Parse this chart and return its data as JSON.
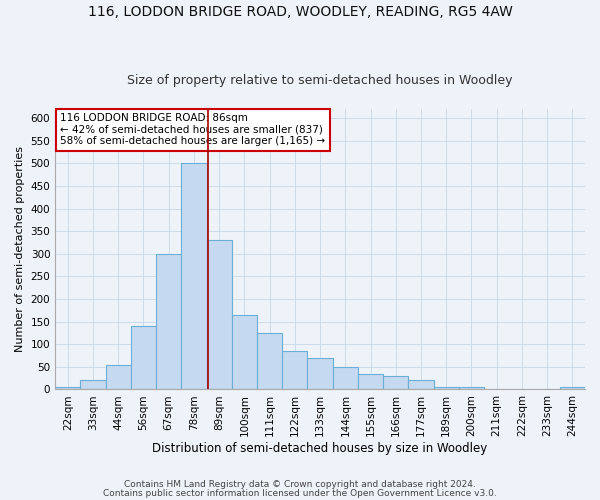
{
  "title": "116, LODDON BRIDGE ROAD, WOODLEY, READING, RG5 4AW",
  "subtitle": "Size of property relative to semi-detached houses in Woodley",
  "xlabel": "Distribution of semi-detached houses by size in Woodley",
  "ylabel": "Number of semi-detached properties",
  "footer1": "Contains HM Land Registry data © Crown copyright and database right 2024.",
  "footer2": "Contains public sector information licensed under the Open Government Licence v3.0.",
  "annotation_line1": "116 LODDON BRIDGE ROAD: 86sqm",
  "annotation_line2": "← 42% of semi-detached houses are smaller (837)",
  "annotation_line3": "58% of semi-detached houses are larger (1,165) →",
  "bar_labels": [
    "22sqm",
    "33sqm",
    "44sqm",
    "56sqm",
    "67sqm",
    "78sqm",
    "89sqm",
    "100sqm",
    "111sqm",
    "122sqm",
    "133sqm",
    "144sqm",
    "155sqm",
    "166sqm",
    "177sqm",
    "189sqm",
    "200sqm",
    "211sqm",
    "222sqm",
    "233sqm",
    "244sqm"
  ],
  "bar_values": [
    5,
    20,
    55,
    140,
    300,
    500,
    330,
    165,
    125,
    85,
    70,
    50,
    35,
    30,
    20,
    5,
    5,
    0,
    0,
    0,
    5
  ],
  "bar_color": "#c5d9f0",
  "bar_edge_color": "#6baed6",
  "vline_color": "#aa0000",
  "vline_x": 5.55,
  "ylim": [
    0,
    620
  ],
  "yticks": [
    0,
    50,
    100,
    150,
    200,
    250,
    300,
    350,
    400,
    450,
    500,
    550,
    600
  ],
  "background_color": "#eef2f9",
  "plot_background": "#eef2f9",
  "annotation_box_color": "#ffffff",
  "annotation_box_edge": "#cc0000",
  "title_fontsize": 10,
  "subtitle_fontsize": 9,
  "xlabel_fontsize": 8.5,
  "ylabel_fontsize": 8,
  "tick_fontsize": 7.5,
  "annotation_fontsize": 7.5
}
